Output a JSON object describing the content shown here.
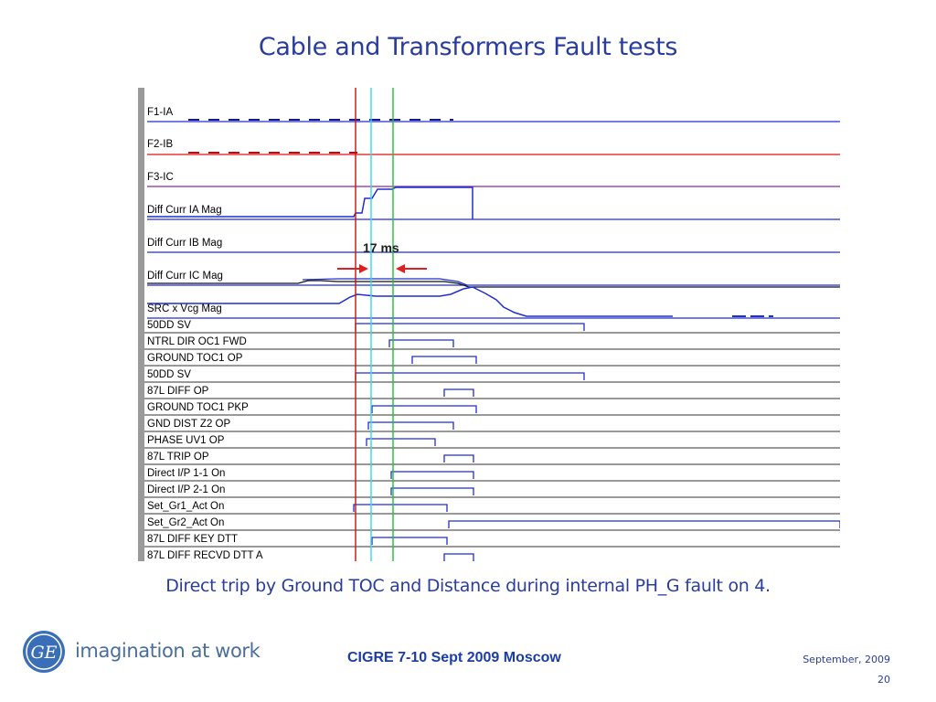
{
  "slide": {
    "title": "Cable and Transformers Fault tests",
    "caption": "Direct trip by Ground TOC and Distance during internal PH_G fault on 4.",
    "footer_center": "CIGRE 7-10 Sept 2009 Moscow",
    "footer_date": "September,  2009",
    "page_number": "20",
    "tagline": "imagination at work",
    "logo_text": "GE"
  },
  "oscillography": {
    "annotation": "17 ms",
    "analog_channels": [
      "F1-IA",
      "F2-IB",
      "F3-IC",
      "Diff Curr IA Mag",
      "Diff Curr IB Mag",
      "Diff Curr IC Mag",
      "SRC x  Vcg Mag"
    ],
    "digital_channels": [
      "50DD SV",
      "NTRL DIR OC1 FWD",
      "GROUND TOC1 OP",
      "50DD SV",
      "87L DIFF OP",
      "GROUND TOC1 PKP",
      "GND DIST Z2 OP",
      "PHASE UV1 OP",
      "87L TRIP OP",
      "Direct I/P 1-1 On",
      "Direct I/P 2-1 On",
      "Set_Gr1_Act  On",
      "Set_Gr2_Act  On",
      "87L DIFF KEY DTT",
      "87L DIFF RECVD DTT A"
    ],
    "colors": {
      "trace_blue": "#1f2fd0",
      "red": "#e01010",
      "purple": "#8a2aa0",
      "cursor_red": "#cc1010",
      "cursor_cyan": "#30d8f0",
      "cursor_green": "#20c030",
      "divider": "#333333"
    }
  }
}
